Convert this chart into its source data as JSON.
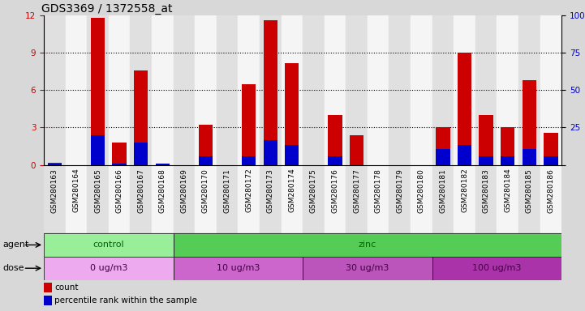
{
  "title": "GDS3369 / 1372558_at",
  "samples": [
    "GSM280163",
    "GSM280164",
    "GSM280165",
    "GSM280166",
    "GSM280167",
    "GSM280168",
    "GSM280169",
    "GSM280170",
    "GSM280171",
    "GSM280172",
    "GSM280173",
    "GSM280174",
    "GSM280175",
    "GSM280176",
    "GSM280177",
    "GSM280178",
    "GSM280179",
    "GSM280180",
    "GSM280181",
    "GSM280182",
    "GSM280183",
    "GSM280184",
    "GSM280185",
    "GSM280186"
  ],
  "count_values": [
    0.15,
    0.0,
    11.8,
    1.8,
    7.6,
    0.0,
    0.0,
    3.2,
    0.0,
    6.5,
    11.6,
    8.2,
    0.0,
    4.0,
    2.4,
    0.0,
    0.0,
    0.0,
    3.0,
    9.0,
    4.0,
    3.0,
    6.8,
    2.6
  ],
  "percentile_values": [
    0.12,
    0.0,
    2.4,
    0.12,
    1.8,
    0.12,
    0.0,
    0.7,
    0.0,
    0.7,
    2.0,
    1.6,
    0.0,
    0.7,
    0.0,
    0.0,
    0.0,
    0.0,
    1.3,
    1.6,
    0.7,
    0.7,
    1.3,
    0.7
  ],
  "count_color": "#cc0000",
  "percentile_color": "#0000cc",
  "ylim": [
    0,
    12
  ],
  "y2lim": [
    0,
    100
  ],
  "yticks": [
    0,
    3,
    6,
    9,
    12
  ],
  "y2ticks": [
    0,
    25,
    50,
    75,
    100
  ],
  "agent_groups": [
    {
      "label": "control",
      "start": 0,
      "end": 6,
      "color": "#99ee99"
    },
    {
      "label": "zinc",
      "start": 6,
      "end": 24,
      "color": "#55cc55"
    }
  ],
  "dose_groups": [
    {
      "label": "0 ug/m3",
      "start": 0,
      "end": 6,
      "color": "#eeaaee"
    },
    {
      "label": "10 ug/m3",
      "start": 6,
      "end": 12,
      "color": "#dd88dd"
    },
    {
      "label": "30 ug/m3",
      "start": 12,
      "end": 18,
      "color": "#cc66cc"
    },
    {
      "label": "100 ug/m3",
      "start": 18,
      "end": 24,
      "color": "#bb44bb"
    }
  ],
  "bar_width": 0.65,
  "fig_bg": "#d8d8d8",
  "plot_bg": "#ffffff",
  "col_even": "#e0e0e0",
  "col_odd": "#f5f5f5",
  "grid_color": "#000000",
  "title_fontsize": 10,
  "tick_fontsize": 6.5,
  "label_fontsize": 8,
  "legend_fontsize": 7.5
}
